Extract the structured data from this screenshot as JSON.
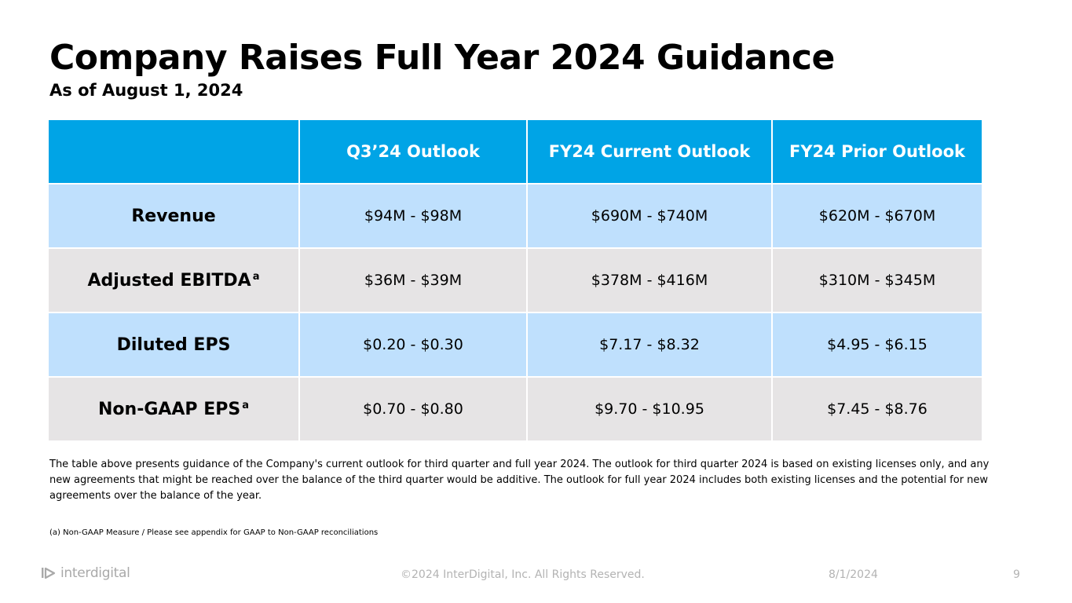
{
  "slide": {
    "title": "Company Raises Full Year 2024 Guidance",
    "subtitle": "As of August 1, 2024"
  },
  "table": {
    "corner": "",
    "headers": [
      "Q3’24 Outlook",
      "FY24 Current Outlook",
      "FY24 Prior Outlook"
    ],
    "rows": [
      {
        "label": "Revenue",
        "superscript": "",
        "values": [
          "$94M - $98M",
          "$690M - $740M",
          "$620M - $670M"
        ]
      },
      {
        "label": "Adjusted EBITDA",
        "superscript": "a",
        "values": [
          "$36M - $39M",
          "$378M - $416M",
          "$310M - $345M"
        ]
      },
      {
        "label": "Diluted EPS",
        "superscript": "",
        "values": [
          "$0.20 - $0.30",
          "$7.17 - $8.32",
          "$4.95 - $6.15"
        ]
      },
      {
        "label": "Non-GAAP EPS",
        "superscript": "a",
        "values": [
          "$0.70 - $0.80",
          "$9.70 - $10.95",
          "$7.45 - $8.76"
        ]
      }
    ],
    "colors": {
      "header": "#00a4e6",
      "row_blue": "#bfe0fd",
      "row_grey": "#e6e4e5"
    }
  },
  "description": "The table above presents guidance of the Company's current outlook for third quarter and full year 2024. The outlook for third quarter 2024 is based on existing licenses only, and any new agreements that might be reached over the balance of the third quarter would be additive. The outlook for full year 2024 includes both existing licenses and the potential for new agreements over the balance of the year.",
  "footnote": "(a) Non-GAAP Measure / Please see appendix for GAAP to Non-GAAP reconciliations",
  "footer": {
    "logo_text": "interdigital",
    "logo_icon": "interdigital-logo-icon",
    "copyright": "©2024 InterDigital, Inc. All Rights Reserved.",
    "date": "8/1/2024",
    "page_number": "9"
  }
}
